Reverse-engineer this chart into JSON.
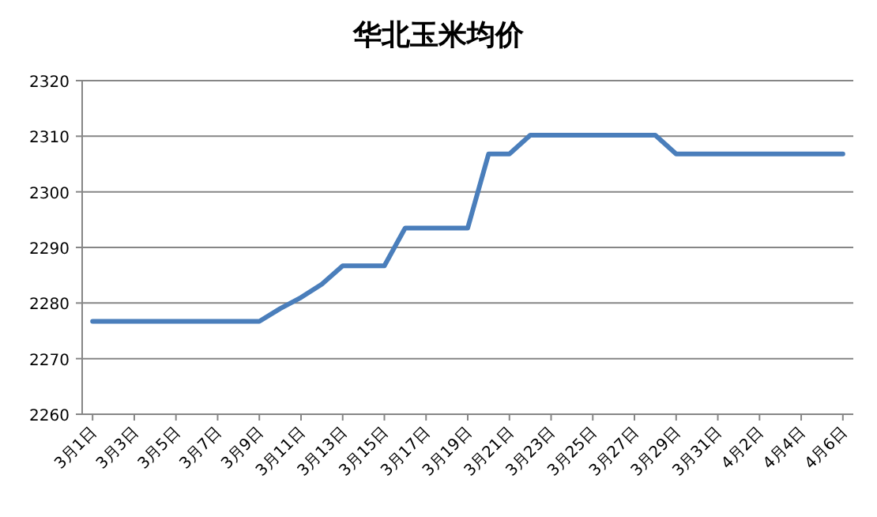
{
  "chart_data": {
    "type": "line",
    "title": "华北玉米均价",
    "categories": [
      "3月1日",
      null,
      "3月3日",
      null,
      "3月5日",
      null,
      "3月7日",
      null,
      "3月9日",
      null,
      "3月11日",
      null,
      "3月13日",
      null,
      "3月15日",
      null,
      "3月17日",
      null,
      "3月19日",
      null,
      "3月21日",
      null,
      "3月23日",
      null,
      "3月25日",
      null,
      "3月27日",
      null,
      "3月29日",
      null,
      "3月31日",
      null,
      "4月2日",
      null,
      "4月4日",
      null,
      "4月6日"
    ],
    "values": [
      2276.7,
      2276.7,
      2276.7,
      2276.7,
      2276.7,
      2276.7,
      2276.7,
      2276.7,
      2276.7,
      2279,
      2281,
      2283.4,
      2286.7,
      2286.7,
      2286.7,
      2293.5,
      2293.5,
      2293.5,
      2293.5,
      2306.8,
      2306.8,
      2310.2,
      2310.2,
      2310.2,
      2310.2,
      2310.2,
      2310.2,
      2310.2,
      2306.8,
      2306.8,
      2306.8,
      2306.8,
      2306.8,
      2306.8,
      2306.8,
      2306.8,
      2306.8
    ],
    "color": "#4a7ebb",
    "ylim": [
      2260,
      2320
    ],
    "yticks": [
      2260,
      2270,
      2280,
      2290,
      2300,
      2310,
      2320
    ],
    "grid": "y"
  }
}
